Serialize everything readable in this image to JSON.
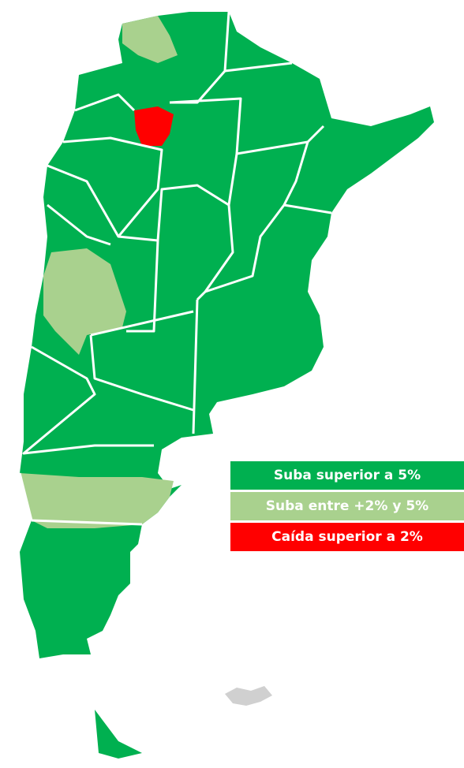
{
  "legend": [
    {
      "label": "Suba superior a 5%",
      "color": "#00b050"
    },
    {
      "label": "Suba entre +2% y 5%",
      "color": "#a9d18e"
    },
    {
      "label": "Caída superior a 2%",
      "color": "#ff0000"
    }
  ]
}
